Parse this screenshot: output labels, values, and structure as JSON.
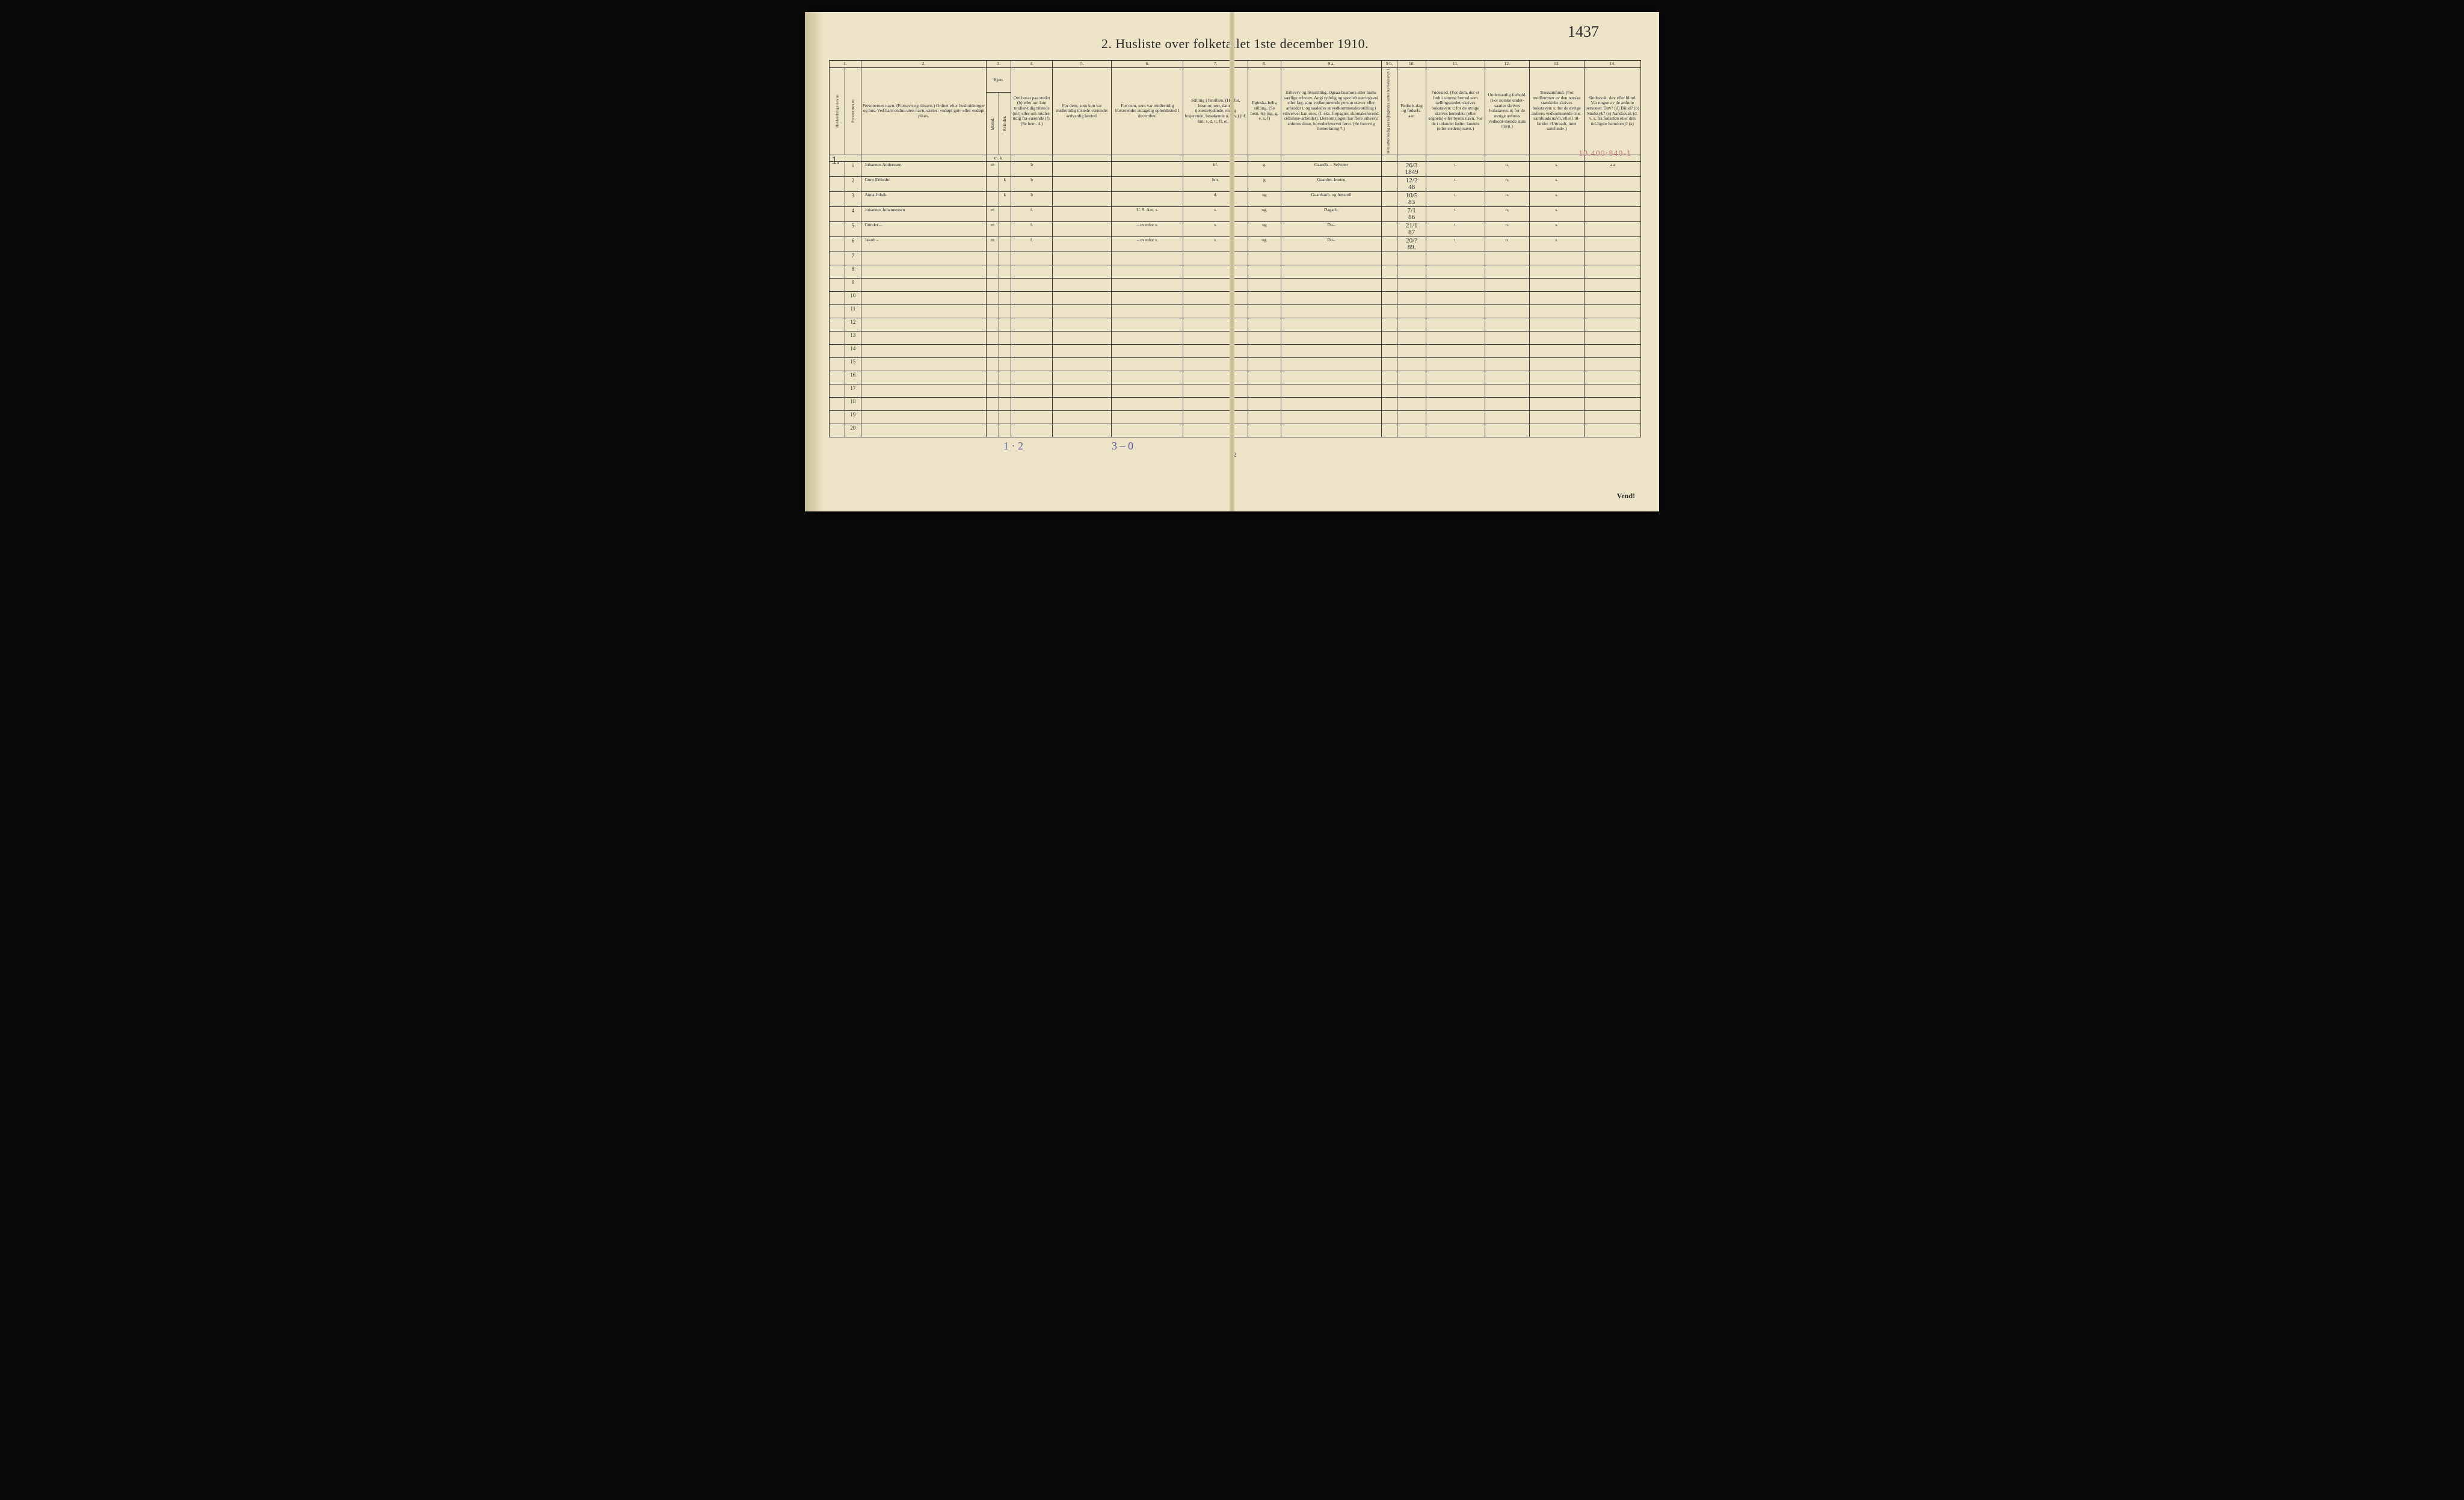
{
  "handwritten_top_right": "1437",
  "title": "2.  Husliste over folketallet 1ste december 1910.",
  "right_margin_code": "10.400·840-1",
  "household_marker": "1.",
  "columns": {
    "nums": [
      "1.",
      "2.",
      "3.",
      "4.",
      "5.",
      "6.",
      "7.",
      "8.",
      "9 a.",
      "9 b.",
      "10.",
      "11.",
      "12.",
      "13.",
      "14."
    ],
    "c1a": "Husholdningernes nr.",
    "c1b": "Personernes nr.",
    "c2": "Personernes navn.\n(Fornavn og tilnavn.)\nOrdnet efter husholdninger og hus.\nVed barn endnu uten navn, sættes: «udøpt gut» eller «udøpt pike».",
    "c3": "Kjøn.",
    "c3a": "Mænd.",
    "c3b": "Kvinder.",
    "c3foot": "m.  k.",
    "c4": "Om bosat paa stedet (b) eller om kun midler-tidig tilstede (mt) eller om midler-tidig fra-værende (f). (Se bem. 4.)",
    "c5": "For dem, som kun var midlertidig tilstede-værende:\nsedvanlig bosted.",
    "c6": "For dem, som var midlertidig fraværende:\nantagelig opholdssted 1 december.",
    "c7": "Stilling i familien.\n(Husfar, husmor, søn, datter, tjenestetydende, enslig losjerende, besøkende o. s. v.)\n(hf, hm, s, d, tj, fl, el, b)",
    "c8": "Egteska-belig stilling.\n(Se bem. 6.)\n(ug, g, e, s, f)",
    "c9a": "Erhverv og livsstilling.\nOgsaa husmors eller barns særlige erhverv.\nAngi tydelig og specielt næringsvei eller fag, som vedkommende person utøver eller arbeider i, og saaledes at vedkommendes stilling i erhvervet kan sees, (f. eks. forpagter, skomakersvend, cellulose-arbeider). Dersom nogen har flere erhverv, anføres disse, hovederhvervet først.\n(Se forøvrig bemerkning 7.)",
    "c9b": "Hvis arbeidsledig paa tællingstiden sættes her bokstaven: l.",
    "c10": "Fødsels-dag og fødsels-aar.",
    "c11": "Fødested.\n(For dem, der er født i samme herred som tællingsstedet, skrives bokstaven: t; for de øvrige skrives herredets (eller sognets) eller byens navn. For de i utlandet fødte: landets (eller stedets) navn.)",
    "c12": "Undersaatlig forhold.\n(For norske under-saatter skrives bokstaven: n; for de øvrige anføres vedkom-mende stats navn.)",
    "c13": "Trossamfund.\n(For medlemmer av den norske statskirke skrives bokstaven: s; for de øvrige anføres vedkommende tros-samfunds navn, eller i til-fælde: «Uttraadt, intet samfund».)",
    "c14": "Sindssvak, døv eller blind.\nVar nogen av de anførte personer:\nDøv?        (d)\nBlind?      (b)\nSindssyk? (s)\nAandssvak (d. v. s. fra fødselen eller den tid-ligste barndom)? (a)"
  },
  "col_widths_pct": [
    2.2,
    2.2,
    17.5,
    1.7,
    1.7,
    5.8,
    8.2,
    10.0,
    9.0,
    4.6,
    14.0,
    2.2,
    4.0,
    8.2,
    6.2,
    7.6,
    7.9
  ],
  "rows": [
    {
      "n": "1",
      "name": "Johannes Anderssen",
      "sex": "m",
      "res": "b",
      "c5": "",
      "c6": "",
      "fam": "hf.",
      "mar": "g.",
      "occ": "Gaardb. – Selveier",
      "l": "",
      "born": "26/3\n1849",
      "bp": "t.",
      "nat": "n.",
      "rel": "s.",
      "dis": "a   a"
    },
    {
      "n": "2",
      "name": "Guro  Eriksdtr.",
      "sex": "k",
      "res": "b",
      "c5": "",
      "c6": "",
      "fam": "hm.",
      "mar": "g",
      "occ": "Gaardm. hustru",
      "l": "",
      "born": "12/2\n48",
      "bp": "t.",
      "nat": "n.",
      "rel": "s.",
      "dis": ""
    },
    {
      "n": "3",
      "name": "Anna  Jolsdt.",
      "sex": "k",
      "res": "b",
      "c5": "",
      "c6": "",
      "fam": "d.",
      "mar": "ug",
      "occ": "Gaardsarb. og husstell",
      "l": "",
      "born": "10/5\n83",
      "bp": "t.",
      "nat": "n.",
      "rel": "s.",
      "dis": ""
    },
    {
      "n": "4",
      "name": "Johannes Johannessen",
      "sex": "m",
      "res": "f.",
      "c5": "",
      "c6": "U. S. Am.   s.",
      "fam": "s.",
      "mar": "ug.",
      "occ": "Dagarb.",
      "l": "",
      "born": "7/1\n86",
      "bp": "t.",
      "nat": "n.",
      "rel": "s.",
      "dis": ""
    },
    {
      "n": "5",
      "name": "Gunder        –",
      "sex": "m",
      "res": "f.",
      "c5": "",
      "c6": "–    ovenfor    s.",
      "fam": "s.",
      "mar": "ug",
      "occ": "Do–",
      "l": "",
      "born": "21/1\n87",
      "bp": "t.",
      "nat": "n.",
      "rel": "s.",
      "dis": ""
    },
    {
      "n": "6",
      "name": "Jakob          –",
      "sex": "m",
      "res": "f.",
      "c5": "",
      "c6": "–    ovenfor    s.",
      "fam": "s.",
      "mar": "ug.",
      "occ": "Do–",
      "l": "",
      "born": "20/?\n89.",
      "bp": "t.",
      "nat": "n.",
      "rel": "s.",
      "dis": ""
    }
  ],
  "empty_row_count": 14,
  "footer": {
    "hand1": "1 · 2",
    "hand2": "3 – 0",
    "pagenum": "2",
    "vend": "Vend!"
  },
  "colors": {
    "paper": "#ede4c8",
    "ink": "#2a2a2a",
    "hand": "#353028",
    "blue_pencil": "#5a5aa8",
    "red_pencil": "#c47a7a",
    "rule": "#3a3a3a"
  }
}
